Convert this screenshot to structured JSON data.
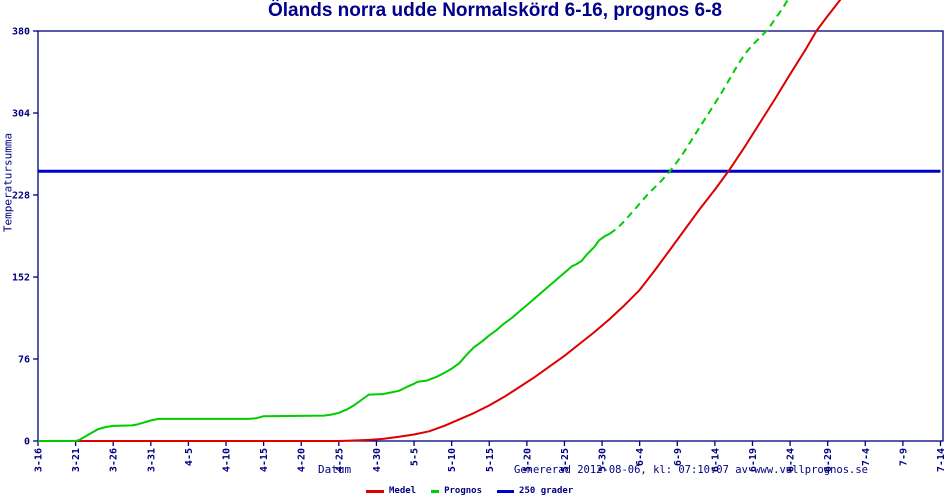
{
  "title": "Ölands norra udde Normalskörd 6-16, prognos 6-8",
  "footer": "Genererad 2012-08-06, kl: 07:10:07 av www.vallprognos.se",
  "legend": {
    "items": [
      {
        "label": "Medel",
        "color": "#dd0000"
      },
      {
        "label": "Prognos",
        "color": "#00cc00"
      },
      {
        "label": "250 grader",
        "color": "#0000cc"
      }
    ]
  },
  "colors": {
    "navy_text": "#000080",
    "title_navy": "#00008B",
    "border": "#000080",
    "medel_red": "#dd0000",
    "prognos_green": "#00cc00",
    "grader_blue": "#0000cc"
  },
  "chart_data": {
    "type": "line",
    "title": "Ölands norra udde Normalskörd 6-16, prognos 6-8",
    "xlabel": "Datum",
    "ylabel": "Temperatursumma",
    "ylim": [
      0,
      380
    ],
    "x_range_days": [
      0,
      120
    ],
    "y_ticks": [
      0,
      76,
      152,
      228,
      304,
      380
    ],
    "x_ticks": {
      "days": [
        0,
        5,
        10,
        15,
        20,
        25,
        30,
        35,
        40,
        45,
        50,
        55,
        60,
        65,
        70,
        75,
        80,
        85,
        90,
        95,
        100,
        105,
        110,
        115,
        120
      ],
      "labels": [
        "3-16",
        "3-21",
        "3-26",
        "3-31",
        "4-5",
        "4-10",
        "4-15",
        "4-20",
        "4-25",
        "4-30",
        "5-5",
        "5-10",
        "5-15",
        "5-20",
        "5-25",
        "5-30",
        "6-4",
        "6-9",
        "6-14",
        "6-19",
        "6-24",
        "6-29",
        "7-4",
        "7-9",
        "7-14"
      ]
    },
    "grid": false,
    "legend_position": "bottom",
    "series": [
      {
        "name": "250 grader",
        "color": "#0000cc",
        "width": 3,
        "dash": false,
        "points": [
          [
            0,
            250
          ],
          [
            120,
            250
          ]
        ]
      },
      {
        "name": "Medel",
        "color": "#dd0000",
        "width": 2,
        "dash": false,
        "points": [
          [
            0,
            0
          ],
          [
            40,
            0
          ],
          [
            42,
            0.5
          ],
          [
            44,
            1
          ],
          [
            46,
            2
          ],
          [
            48,
            4
          ],
          [
            50,
            6
          ],
          [
            52,
            9
          ],
          [
            54,
            14
          ],
          [
            56,
            20
          ],
          [
            58,
            26
          ],
          [
            60,
            33
          ],
          [
            62,
            41
          ],
          [
            64,
            50
          ],
          [
            66,
            59
          ],
          [
            68,
            69
          ],
          [
            70,
            79
          ],
          [
            72,
            90
          ],
          [
            74,
            101
          ],
          [
            76,
            113
          ],
          [
            78,
            126
          ],
          [
            80,
            140
          ],
          [
            82,
            158
          ],
          [
            84,
            177
          ],
          [
            86,
            196
          ],
          [
            88,
            215
          ],
          [
            90,
            233
          ],
          [
            92,
            252
          ],
          [
            94,
            273
          ],
          [
            96,
            295
          ],
          [
            98,
            317
          ],
          [
            100,
            340
          ],
          [
            102,
            362
          ],
          [
            103.5,
            380
          ],
          [
            105,
            394
          ],
          [
            106.8,
            410
          ]
        ]
      },
      {
        "name": "Prognos",
        "color": "#00cc00",
        "width": 2,
        "dash": false,
        "points": [
          [
            0,
            0
          ],
          [
            5,
            0
          ],
          [
            5.5,
            1
          ],
          [
            6,
            3
          ],
          [
            7,
            7
          ],
          [
            8,
            11
          ],
          [
            9,
            13
          ],
          [
            10,
            14
          ],
          [
            12.5,
            14.5
          ],
          [
            13,
            15
          ],
          [
            14,
            17
          ],
          [
            15,
            19
          ],
          [
            16,
            20.5
          ],
          [
            28,
            20.5
          ],
          [
            29,
            21
          ],
          [
            30,
            23
          ],
          [
            38,
            23.5
          ],
          [
            39,
            24.5
          ],
          [
            40,
            26
          ],
          [
            41,
            29
          ],
          [
            42,
            33
          ],
          [
            43,
            38
          ],
          [
            44,
            43
          ],
          [
            45.8,
            43.5
          ],
          [
            47,
            45
          ],
          [
            48,
            46.5
          ],
          [
            49,
            50
          ],
          [
            50,
            53
          ],
          [
            50.5,
            55
          ],
          [
            51.7,
            56
          ],
          [
            53,
            59.5
          ],
          [
            54,
            63
          ],
          [
            55,
            67
          ],
          [
            56,
            72
          ],
          [
            57,
            80
          ],
          [
            58,
            87
          ],
          [
            59,
            92
          ],
          [
            60,
            98
          ],
          [
            61,
            103
          ],
          [
            62,
            109
          ],
          [
            63,
            114
          ],
          [
            64,
            120
          ],
          [
            65,
            126
          ],
          [
            66,
            132
          ],
          [
            67,
            138
          ],
          [
            68,
            144
          ],
          [
            69,
            150
          ],
          [
            70,
            156
          ],
          [
            71,
            162
          ],
          [
            71.6,
            164
          ],
          [
            72.3,
            167
          ],
          [
            73,
            173
          ],
          [
            74,
            180
          ],
          [
            74.6,
            186
          ],
          [
            75.4,
            190
          ],
          [
            76,
            192
          ]
        ]
      },
      {
        "name": "Prognos (prognosdel)",
        "color": "#00cc00",
        "width": 2,
        "dash": true,
        "points": [
          [
            76,
            192
          ],
          [
            77,
            197
          ],
          [
            78,
            204
          ],
          [
            79,
            212
          ],
          [
            80,
            220
          ],
          [
            81,
            228
          ],
          [
            82,
            235
          ],
          [
            83,
            242
          ],
          [
            84,
            250
          ],
          [
            85,
            259
          ],
          [
            86,
            269
          ],
          [
            87,
            280
          ],
          [
            88,
            291
          ],
          [
            89,
            302
          ],
          [
            90,
            313
          ],
          [
            91,
            324
          ],
          [
            92,
            336
          ],
          [
            93,
            348
          ],
          [
            94,
            359
          ],
          [
            95,
            367
          ],
          [
            96,
            374
          ],
          [
            97,
            381
          ],
          [
            98,
            391
          ],
          [
            99,
            401
          ],
          [
            99.8,
            410
          ]
        ]
      }
    ]
  }
}
